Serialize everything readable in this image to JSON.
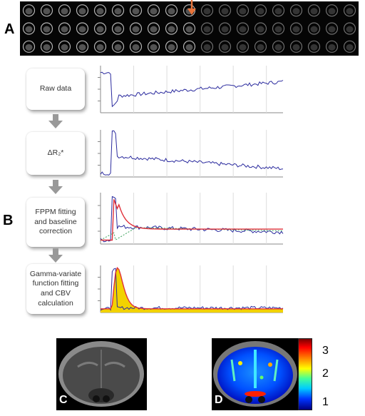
{
  "labels": {
    "a": "A",
    "b": "B",
    "c": "C",
    "d": "D"
  },
  "steps": [
    {
      "label": "Raw data"
    },
    {
      "label": "ΔR₂*"
    },
    {
      "label": "FPPM fitting and baseline correction"
    },
    {
      "label": "Gamma-variate function fitting and CBV calculation"
    }
  ],
  "colorbar": {
    "ticks": [
      "3",
      "2",
      "1"
    ]
  },
  "colors": {
    "signal": "#2b2b9e",
    "fit": "#e0303a",
    "baseline_fit": "#3aa05a",
    "gamma_fill": "#f2d200",
    "arrow": "#e8733a"
  }
}
